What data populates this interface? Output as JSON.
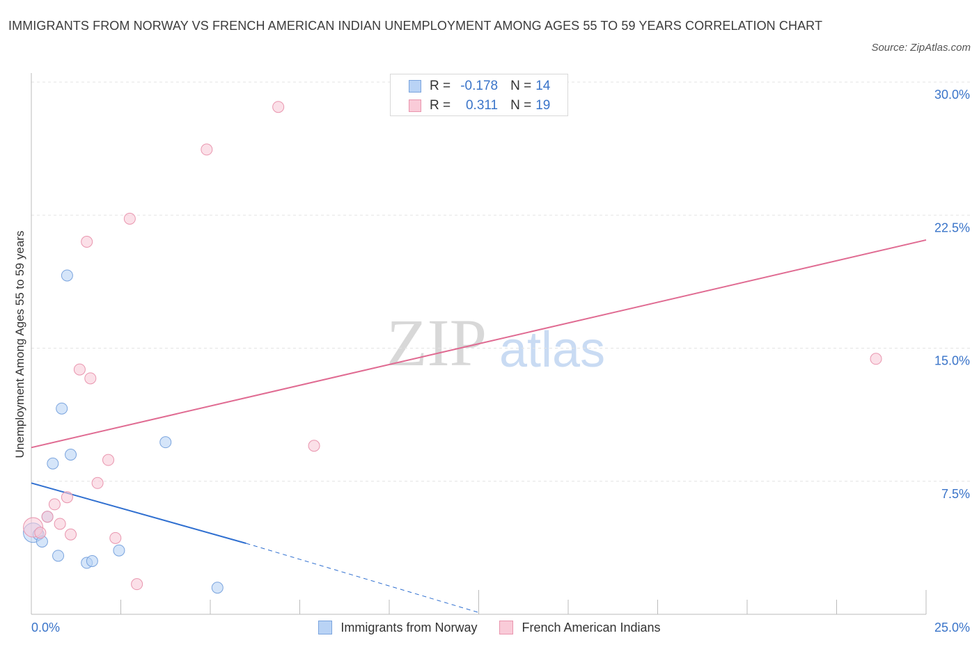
{
  "title": "IMMIGRANTS FROM NORWAY VS FRENCH AMERICAN INDIAN UNEMPLOYMENT AMONG AGES 55 TO 59 YEARS CORRELATION CHART",
  "source": "Source: ZipAtlas.com",
  "watermark": {
    "zip": "ZIP",
    "atlas": "atlas"
  },
  "stats": {
    "norway": {
      "r_label": "R =",
      "r_value": "-0.178",
      "n_label": "N =",
      "n_value": "14"
    },
    "french": {
      "r_label": "R =",
      "r_value": "0.311",
      "n_label": "N =",
      "n_value": "19"
    }
  },
  "legend": {
    "norway": "Immigrants from Norway",
    "french": "French American Indians"
  },
  "colors": {
    "norway_fill": "#b9d3f5",
    "norway_stroke": "#7aa4de",
    "norway_line": "#2f6fd0",
    "french_fill": "#f9cbd8",
    "french_stroke": "#e995ae",
    "french_line": "#e06b92",
    "grid": "#e3e3e3",
    "axis_label": "#3a74c9"
  },
  "chart_data": {
    "type": "scatter",
    "title": "IMMIGRANTS FROM NORWAY VS FRENCH AMERICAN INDIAN UNEMPLOYMENT AMONG AGES 55 TO 59 YEARS CORRELATION CHART",
    "xlabel": "",
    "ylabel": "Unemployment Among Ages 55 to 59 years",
    "xlim": [
      0,
      25
    ],
    "ylim": [
      0,
      30
    ],
    "x_tick_labels": [
      {
        "value": 0,
        "label": "0.0%"
      },
      {
        "value": 25,
        "label": "25.0%"
      }
    ],
    "y_ticks": [
      {
        "value": 7.5,
        "label": "7.5%"
      },
      {
        "value": 15,
        "label": "15.0%"
      },
      {
        "value": 22.5,
        "label": "22.5%"
      },
      {
        "value": 30,
        "label": "30.0%"
      }
    ],
    "grid": true,
    "series": [
      {
        "name": "Immigrants from Norway",
        "color": "blue",
        "points": [
          {
            "x": 0.05,
            "y": 4.6,
            "big": true
          },
          {
            "x": 0.2,
            "y": 4.5
          },
          {
            "x": 0.3,
            "y": 4.1
          },
          {
            "x": 0.45,
            "y": 5.5
          },
          {
            "x": 0.6,
            "y": 8.5
          },
          {
            "x": 0.75,
            "y": 3.3
          },
          {
            "x": 0.85,
            "y": 11.6
          },
          {
            "x": 1.0,
            "y": 19.1
          },
          {
            "x": 1.1,
            "y": 9.0
          },
          {
            "x": 1.55,
            "y": 2.9
          },
          {
            "x": 1.7,
            "y": 3.0
          },
          {
            "x": 2.45,
            "y": 3.6
          },
          {
            "x": 3.75,
            "y": 9.7
          },
          {
            "x": 5.2,
            "y": 1.5
          }
        ],
        "trend": {
          "x0": 0,
          "y0": 7.4,
          "x1": 6.0,
          "y1": 4.0,
          "dashed_to_x": 12.5,
          "dashed_to_y": 0.1
        }
      },
      {
        "name": "French American Indians",
        "color": "pink",
        "points": [
          {
            "x": 0.05,
            "y": 4.9,
            "big": true
          },
          {
            "x": 0.25,
            "y": 4.6
          },
          {
            "x": 0.45,
            "y": 5.5
          },
          {
            "x": 0.65,
            "y": 6.2
          },
          {
            "x": 0.8,
            "y": 5.1
          },
          {
            "x": 1.0,
            "y": 6.6
          },
          {
            "x": 1.1,
            "y": 4.5
          },
          {
            "x": 1.35,
            "y": 13.8
          },
          {
            "x": 1.55,
            "y": 21.0
          },
          {
            "x": 1.65,
            "y": 13.3
          },
          {
            "x": 1.85,
            "y": 7.4
          },
          {
            "x": 2.15,
            "y": 8.7
          },
          {
            "x": 2.35,
            "y": 4.3
          },
          {
            "x": 2.75,
            "y": 22.3
          },
          {
            "x": 2.95,
            "y": 1.7
          },
          {
            "x": 4.9,
            "y": 26.2
          },
          {
            "x": 6.9,
            "y": 28.6
          },
          {
            "x": 7.9,
            "y": 9.5
          },
          {
            "x": 23.6,
            "y": 14.4
          }
        ],
        "trend": {
          "x0": 0,
          "y0": 9.4,
          "x1": 25,
          "y1": 21.1
        }
      }
    ]
  }
}
